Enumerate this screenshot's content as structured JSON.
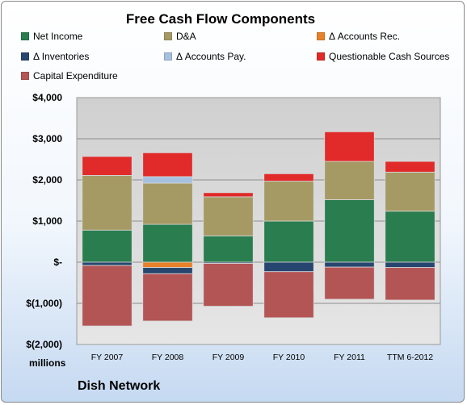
{
  "chart_data": {
    "type": "bar",
    "stacked": true,
    "title": "Free Cash Flow Components",
    "units": "millions",
    "company": "Dish Network",
    "categories": [
      "FY 2007",
      "FY 2008",
      "FY 2009",
      "FY 2010",
      "FY 2011",
      "TTM 6-2012"
    ],
    "ylim": [
      -2000,
      4000
    ],
    "yticks": [
      -2000,
      -1000,
      0,
      1000,
      2000,
      3000,
      4000
    ],
    "ytick_labels": [
      "$(2,000)",
      "$(1,000)",
      "$-",
      "$1,000",
      "$2,000",
      "$3,000",
      "$4,000"
    ],
    "grid": true,
    "legend_position": "top",
    "series": [
      {
        "name": "Net Income",
        "color": "#2a7d4f",
        "values": [
          780,
          920,
          640,
          1000,
          1520,
          1240
        ]
      },
      {
        "name": "D&A",
        "color": "#a59a64",
        "values": [
          1330,
          1000,
          950,
          970,
          930,
          950
        ]
      },
      {
        "name": "Δ Accounts Rec.",
        "color": "#e7812a",
        "values": [
          0,
          -130,
          0,
          0,
          0,
          0
        ]
      },
      {
        "name": "Δ Inventories",
        "color": "#27466f",
        "values": [
          -80,
          -150,
          -30,
          -230,
          -120,
          -130
        ]
      },
      {
        "name": "Δ Accounts Pay.",
        "color": "#a7c0df",
        "values": [
          0,
          160,
          0,
          0,
          0,
          0
        ]
      },
      {
        "name": "Questionable Cash Sources",
        "color": "#e12a2a",
        "values": [
          460,
          580,
          100,
          180,
          720,
          260
        ]
      },
      {
        "name": "Capital Expenditure",
        "color": "#b45555",
        "values": [
          -1470,
          -1150,
          -1040,
          -1120,
          -780,
          -790
        ]
      }
    ]
  }
}
